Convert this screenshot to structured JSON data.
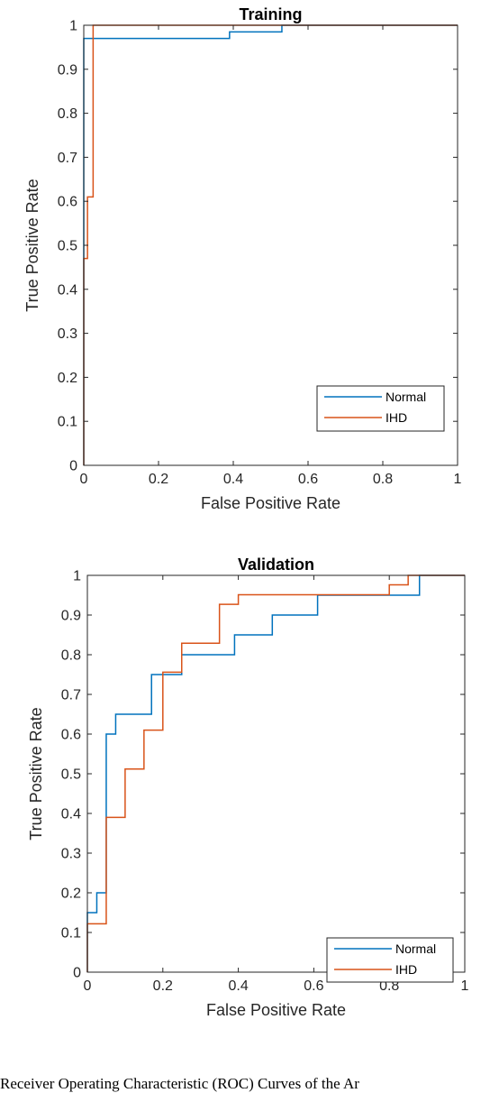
{
  "chart_data": [
    {
      "type": "line",
      "title": "Training",
      "xlabel": "False Positive Rate",
      "ylabel": "True Positive Rate",
      "xlim": [
        0,
        1
      ],
      "ylim": [
        0,
        1
      ],
      "xticks": [
        "0",
        "0.2",
        "0.4",
        "0.6",
        "0.8",
        "1"
      ],
      "yticks": [
        "0",
        "0.1",
        "0.2",
        "0.3",
        "0.4",
        "0.5",
        "0.6",
        "0.7",
        "0.8",
        "0.9",
        "1"
      ],
      "grid": false,
      "legend_position": "bottom-right",
      "series": [
        {
          "name": "Normal",
          "color": "#0072BD",
          "x": [
            0,
            0,
            0.39,
            0.39,
            0.53,
            0.53,
            1
          ],
          "y": [
            0,
            0.97,
            0.97,
            0.985,
            0.985,
            1,
            1
          ]
        },
        {
          "name": "IHD",
          "color": "#D95319",
          "x": [
            0,
            0,
            0.01,
            0.01,
            0.025,
            0.025,
            1
          ],
          "y": [
            0,
            0.47,
            0.47,
            0.61,
            0.61,
            1,
            1
          ]
        }
      ]
    },
    {
      "type": "line",
      "title": "Validation",
      "xlabel": "False Positive Rate",
      "ylabel": "True Positive Rate",
      "xlim": [
        0,
        1
      ],
      "ylim": [
        0,
        1
      ],
      "xticks": [
        "0",
        "0.2",
        "0.4",
        "0.6",
        "0.8",
        "1"
      ],
      "yticks": [
        "0",
        "0.1",
        "0.2",
        "0.3",
        "0.4",
        "0.5",
        "0.6",
        "0.7",
        "0.8",
        "0.9",
        "1"
      ],
      "grid": false,
      "legend_position": "bottom-right",
      "series": [
        {
          "name": "Normal",
          "color": "#0072BD",
          "x": [
            0,
            0,
            0.025,
            0.025,
            0.05,
            0.05,
            0.075,
            0.075,
            0.17,
            0.17,
            0.25,
            0.25,
            0.39,
            0.39,
            0.49,
            0.49,
            0.61,
            0.61,
            0.88,
            0.88,
            1
          ],
          "y": [
            0,
            0.15,
            0.15,
            0.2,
            0.2,
            0.6,
            0.6,
            0.65,
            0.65,
            0.75,
            0.75,
            0.8,
            0.8,
            0.85,
            0.85,
            0.9,
            0.9,
            0.95,
            0.95,
            1,
            1
          ]
        },
        {
          "name": "IHD",
          "color": "#D95319",
          "x": [
            0,
            0,
            0.05,
            0.05,
            0.1,
            0.1,
            0.15,
            0.15,
            0.2,
            0.2,
            0.25,
            0.25,
            0.35,
            0.35,
            0.4,
            0.4,
            0.8,
            0.8,
            0.85,
            0.85,
            1
          ],
          "y": [
            0,
            0.122,
            0.122,
            0.39,
            0.39,
            0.512,
            0.512,
            0.61,
            0.61,
            0.756,
            0.756,
            0.829,
            0.829,
            0.927,
            0.927,
            0.951,
            0.951,
            0.976,
            0.976,
            1,
            1
          ]
        }
      ]
    }
  ],
  "caption": "Receiver Operating Characteristic (ROC) Curves of the Ar"
}
